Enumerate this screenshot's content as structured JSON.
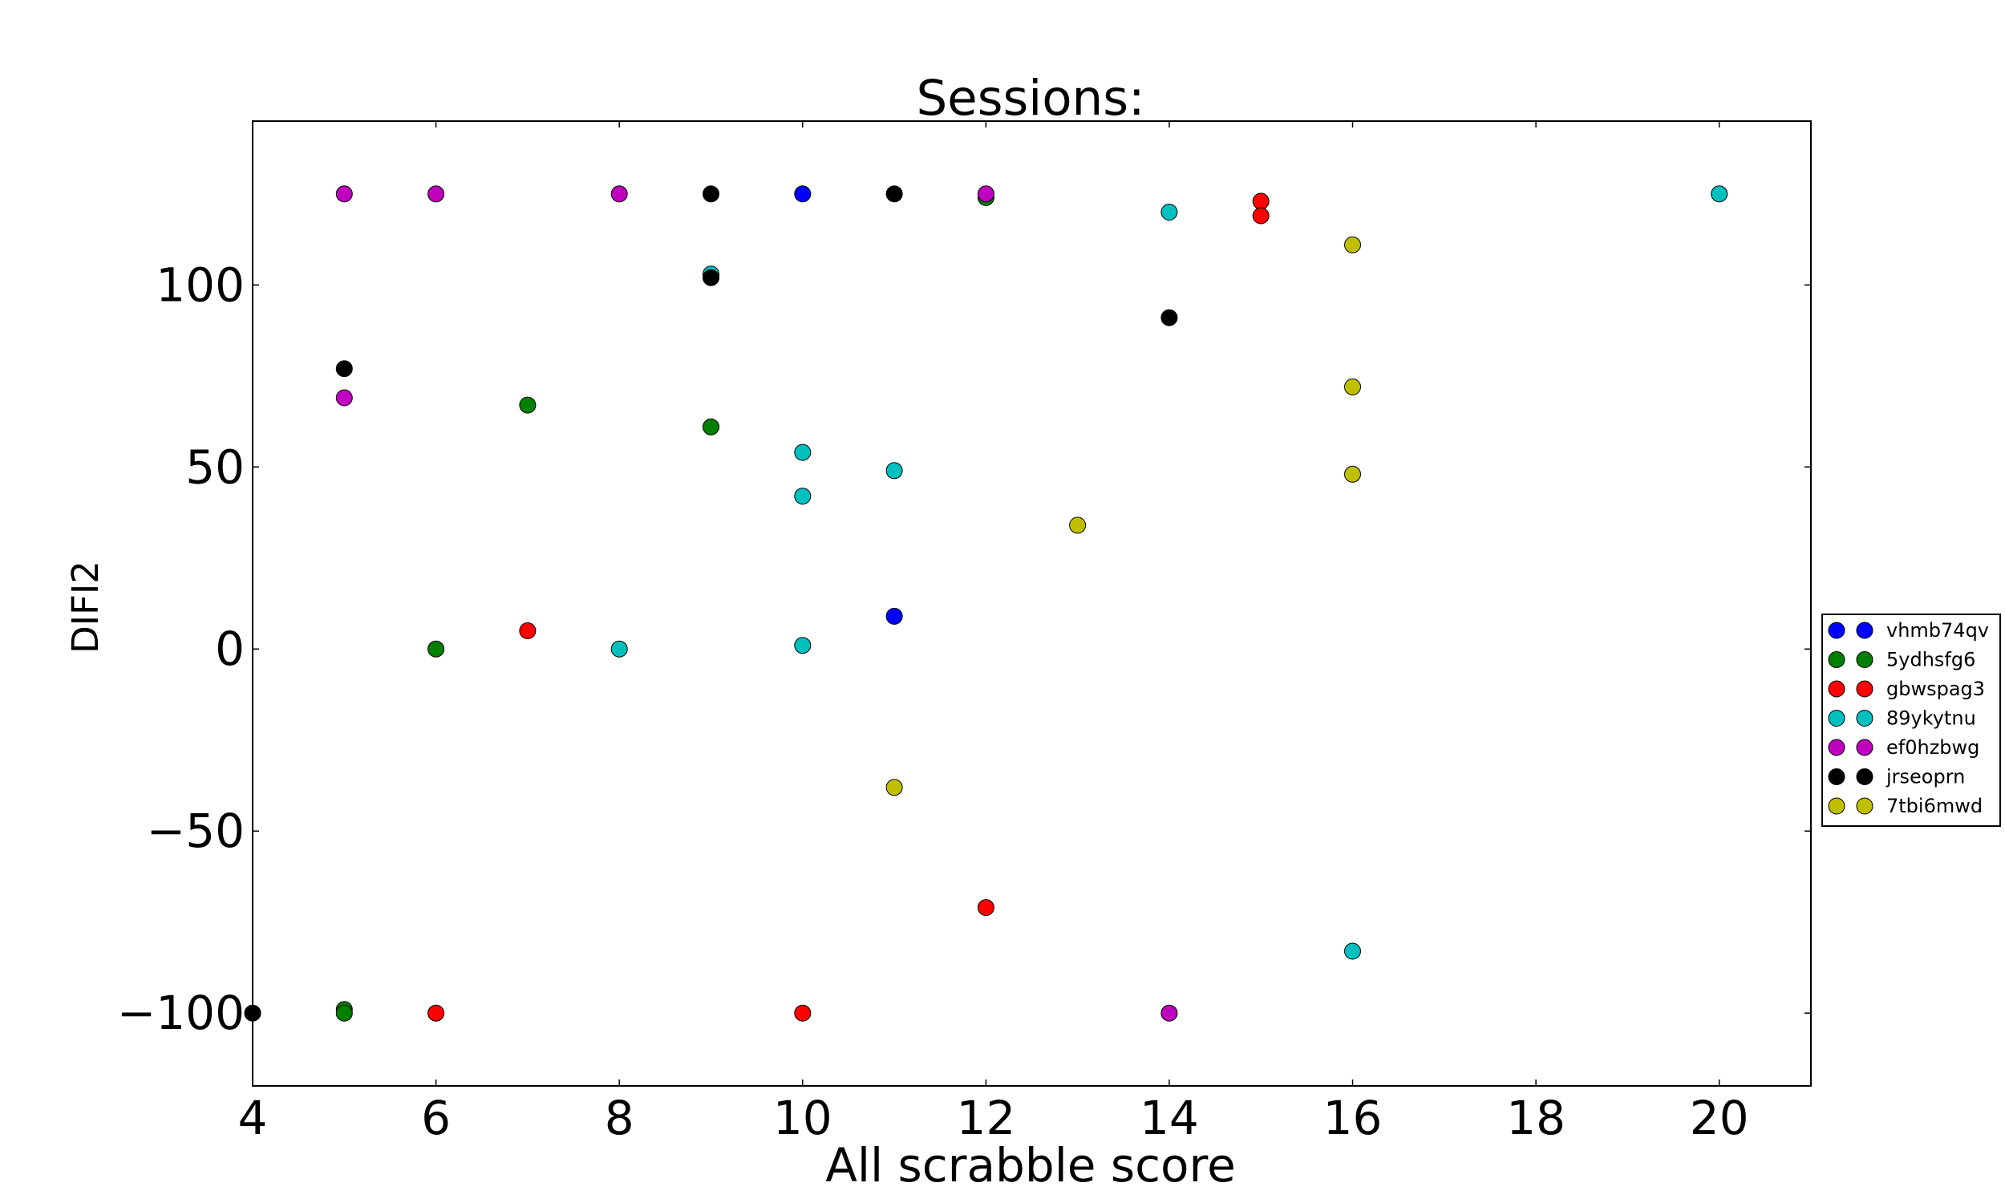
{
  "chart_data": {
    "type": "scatter",
    "title": "Sessions:",
    "xlabel": "All scrabble score",
    "ylabel": "DIFI2",
    "xlim": [
      4,
      21
    ],
    "ylim": [
      -120,
      145
    ],
    "xticks": [
      4,
      6,
      8,
      10,
      12,
      14,
      16,
      18,
      20
    ],
    "yticks": [
      100,
      50,
      0,
      -50,
      -100
    ],
    "xtick_labels": [
      "4",
      "6",
      "8",
      "10",
      "12",
      "14",
      "16",
      "18",
      "20"
    ],
    "ytick_labels": [
      "100",
      "50",
      "0",
      "−50",
      "−100"
    ],
    "grid": false,
    "legend_position": "right",
    "series": [
      {
        "name": "vhmb74qv",
        "color": "#0000ff",
        "points": [
          [
            10,
            125
          ],
          [
            11,
            9
          ]
        ]
      },
      {
        "name": "5ydhsfg6",
        "color": "#007f00",
        "points": [
          [
            5,
            -99
          ],
          [
            5,
            -100
          ],
          [
            6,
            0
          ],
          [
            7,
            67
          ],
          [
            9,
            61
          ],
          [
            12,
            124
          ]
        ]
      },
      {
        "name": "gbwspag3",
        "color": "#ff0000",
        "points": [
          [
            6,
            -100
          ],
          [
            7,
            5
          ],
          [
            10,
            -100
          ],
          [
            12,
            -71
          ],
          [
            15,
            123
          ],
          [
            15,
            119
          ]
        ]
      },
      {
        "name": "89ykytnu",
        "color": "#00bfbf",
        "points": [
          [
            8,
            0
          ],
          [
            9,
            103
          ],
          [
            10,
            54
          ],
          [
            10,
            42
          ],
          [
            10,
            1
          ],
          [
            11,
            49
          ],
          [
            14,
            120
          ],
          [
            16,
            -83
          ],
          [
            20,
            125
          ]
        ]
      },
      {
        "name": "ef0hzbwg",
        "color": "#bf00bf",
        "points": [
          [
            5,
            125
          ],
          [
            5,
            69
          ],
          [
            6,
            125
          ],
          [
            8,
            125
          ],
          [
            12,
            125
          ],
          [
            14,
            -100
          ]
        ]
      },
      {
        "name": "jrseoprn",
        "color": "#000000",
        "points": [
          [
            4,
            -100
          ],
          [
            5,
            77
          ],
          [
            9,
            125
          ],
          [
            9,
            102
          ],
          [
            11,
            125
          ],
          [
            14,
            91
          ]
        ]
      },
      {
        "name": "7tbi6mwd",
        "color": "#bfbf00",
        "points": [
          [
            11,
            -38
          ],
          [
            13,
            34
          ],
          [
            16,
            111
          ],
          [
            16,
            72
          ],
          [
            16,
            48
          ]
        ]
      }
    ]
  }
}
